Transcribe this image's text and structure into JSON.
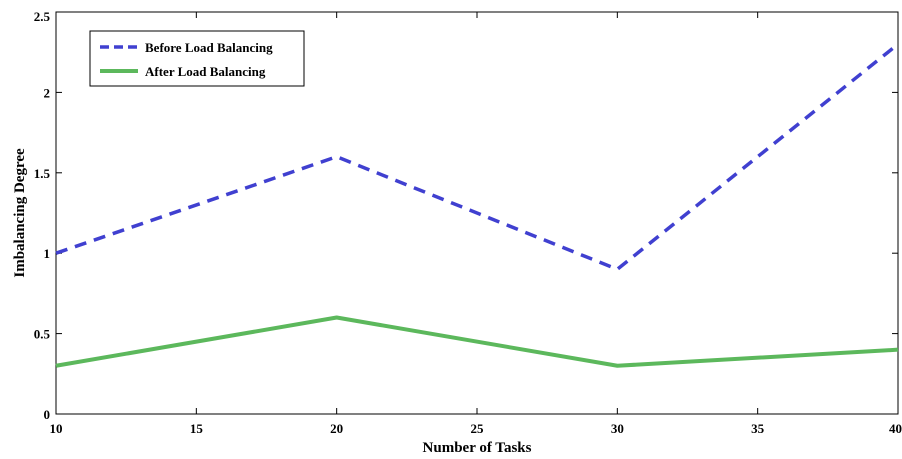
{
  "chart_data": {
    "type": "line",
    "title": "",
    "xlabel": "Number of Tasks",
    "ylabel": "Imbalancing Degree",
    "xlim": [
      10,
      40
    ],
    "ylim": [
      0,
      2.5
    ],
    "xticks": [
      10,
      15,
      20,
      25,
      30,
      35,
      40
    ],
    "yticks": [
      0,
      0.5,
      1,
      1.5,
      2,
      2.5
    ],
    "xtick_labels": [
      "10",
      "15",
      "20",
      "25",
      "30",
      "35",
      "40"
    ],
    "ytick_labels": [
      "0",
      "0.5",
      "1",
      "1.5",
      "2",
      "2.5"
    ],
    "grid": false,
    "legend_position": "top-left",
    "series": [
      {
        "name": "Before Load Balancing",
        "x": [
          10,
          20,
          30,
          40
        ],
        "y": [
          1.0,
          1.6,
          0.9,
          2.3
        ],
        "color": "#4040d0",
        "style": "dashed"
      },
      {
        "name": "After Load Balancing",
        "x": [
          10,
          20,
          30,
          40
        ],
        "y": [
          0.3,
          0.6,
          0.3,
          0.4
        ],
        "color": "#5cb85c",
        "style": "solid"
      }
    ]
  }
}
